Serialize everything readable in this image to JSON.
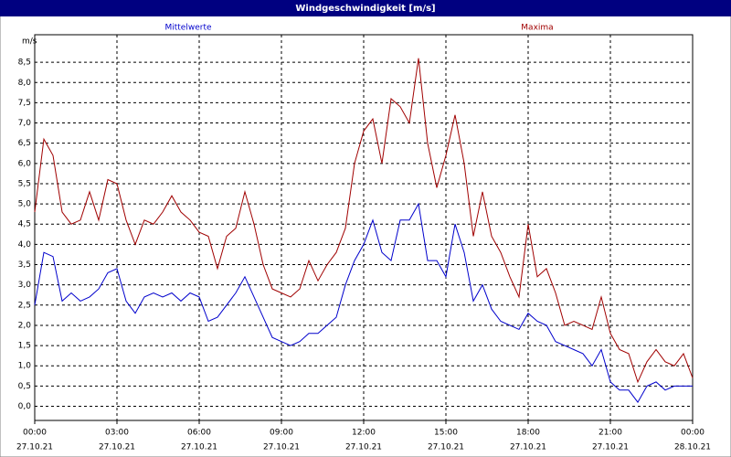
{
  "chart_data": {
    "type": "line",
    "title": "Windgeschwindigkeit [m/s]",
    "y_label": "m/s",
    "x": [
      0,
      20,
      40,
      60,
      80,
      100,
      120,
      140,
      160,
      180,
      200,
      220,
      240,
      260,
      280,
      300,
      320,
      340,
      360,
      380,
      400,
      420,
      440,
      460,
      480,
      500,
      520,
      540,
      560,
      580,
      600,
      620,
      640,
      660,
      680,
      700,
      720,
      740,
      760,
      780,
      800,
      820,
      840,
      860,
      880,
      900,
      920,
      940,
      960,
      980,
      1000,
      1020,
      1040,
      1060,
      1080,
      1100,
      1120,
      1140,
      1160,
      1180,
      1200,
      1220,
      1240,
      1260,
      1280,
      1300,
      1320,
      1340,
      1360,
      1380,
      1400,
      1420,
      1440
    ],
    "series": [
      {
        "name": "Mittelwerte",
        "color": "#0000cc",
        "values": [
          2.5,
          3.8,
          3.7,
          2.6,
          2.8,
          2.6,
          2.7,
          2.9,
          3.3,
          3.4,
          2.6,
          2.3,
          2.7,
          2.8,
          2.7,
          2.8,
          2.6,
          2.8,
          2.7,
          2.1,
          2.2,
          2.5,
          2.8,
          3.2,
          2.7,
          2.2,
          1.7,
          1.6,
          1.5,
          1.6,
          1.8,
          1.8,
          2.0,
          2.2,
          3.0,
          3.6,
          4.0,
          4.6,
          3.8,
          3.6,
          4.6,
          4.6,
          5.0,
          3.6,
          3.6,
          3.2,
          4.5,
          3.8,
          2.6,
          3.0,
          2.4,
          2.1,
          2.0,
          1.9,
          2.3,
          2.1,
          2.0,
          1.6,
          1.5,
          1.4,
          1.3,
          1.0,
          1.4,
          0.6,
          0.4,
          0.4,
          0.1,
          0.5,
          0.6,
          0.4,
          0.5,
          0.5,
          0.5
        ]
      },
      {
        "name": "Maxima",
        "color": "#a00000",
        "values": [
          4.8,
          6.6,
          6.2,
          4.8,
          4.5,
          4.6,
          5.3,
          4.6,
          5.6,
          5.5,
          4.6,
          4.0,
          4.6,
          4.5,
          4.8,
          5.2,
          4.8,
          4.6,
          4.3,
          4.2,
          3.4,
          4.2,
          4.4,
          5.3,
          4.5,
          3.5,
          2.9,
          2.8,
          2.7,
          2.9,
          3.6,
          3.1,
          3.5,
          3.8,
          4.4,
          6.0,
          6.8,
          7.1,
          6.0,
          7.6,
          7.4,
          7.0,
          8.6,
          6.5,
          5.4,
          6.2,
          7.2,
          6.0,
          4.2,
          5.3,
          4.2,
          3.8,
          3.2,
          2.7,
          4.5,
          3.2,
          3.4,
          2.8,
          2.0,
          2.1,
          2.0,
          1.9,
          2.7,
          1.8,
          1.4,
          1.3,
          0.6,
          1.1,
          1.4,
          1.1,
          1.0,
          1.3,
          0.7
        ]
      }
    ],
    "xlim": [
      0,
      1440
    ],
    "xticks": [
      {
        "value": 0,
        "label": "00:00",
        "date": "27.10.21"
      },
      {
        "value": 180,
        "label": "03:00",
        "date": "27.10.21"
      },
      {
        "value": 360,
        "label": "06:00",
        "date": "27.10.21"
      },
      {
        "value": 540,
        "label": "09:00",
        "date": "27.10.21"
      },
      {
        "value": 720,
        "label": "12:00",
        "date": "27.10.21"
      },
      {
        "value": 900,
        "label": "15:00",
        "date": "27.10.21"
      },
      {
        "value": 1080,
        "label": "18:00",
        "date": "27.10.21"
      },
      {
        "value": 1260,
        "label": "21:00",
        "date": "27.10.21"
      },
      {
        "value": 1440,
        "label": "00:00",
        "date": "28.10.21"
      }
    ],
    "ylim": [
      -0.35,
      9.18
    ],
    "yticks": [
      {
        "value": 0,
        "label": "0,0"
      },
      {
        "value": 0.5,
        "label": "0,5"
      },
      {
        "value": 1,
        "label": "1,0"
      },
      {
        "value": 1.5,
        "label": "1,5"
      },
      {
        "value": 2,
        "label": "2,0"
      },
      {
        "value": 2.5,
        "label": "2,5"
      },
      {
        "value": 3,
        "label": "3,0"
      },
      {
        "value": 3.5,
        "label": "3,5"
      },
      {
        "value": 4,
        "label": "4,0"
      },
      {
        "value": 4.5,
        "label": "4,5"
      },
      {
        "value": 5,
        "label": "5,0"
      },
      {
        "value": 5.5,
        "label": "5,5"
      },
      {
        "value": 6,
        "label": "6,0"
      },
      {
        "value": 6.5,
        "label": "6,5"
      },
      {
        "value": 7,
        "label": "7,0"
      },
      {
        "value": 7.5,
        "label": "7,5"
      },
      {
        "value": 8,
        "label": "8,0"
      },
      {
        "value": 8.5,
        "label": "8,5"
      }
    ],
    "grid": true
  }
}
